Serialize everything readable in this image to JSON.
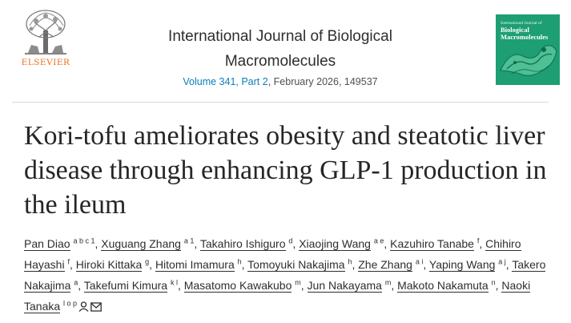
{
  "header": {
    "publisher": "ELSEVIER",
    "journal_title": "International Journal of Biological Macromolecules",
    "volume": "Volume 341, Part 2",
    "issue_rest": ", February 2026, 149537",
    "cover": {
      "top_text": "International Journal of",
      "title": "Biological Macromolecules",
      "color": "#1e9e73"
    }
  },
  "article": {
    "title": "Kori-tofu ameliorates obesity and steatotic liver disease through enhancing GLP-1 production in the ileum"
  },
  "authors": [
    {
      "name": "Pan Diao",
      "sup": "a b c 1"
    },
    {
      "name": "Xuguang Zhang",
      "sup": "a 1"
    },
    {
      "name": "Takahiro Ishiguro",
      "sup": "d"
    },
    {
      "name": "Xiaojing Wang",
      "sup": "a e"
    },
    {
      "name": "Kazuhiro Tanabe",
      "sup": "f"
    },
    {
      "name": "Chihiro Hayashi",
      "sup": "f"
    },
    {
      "name": "Hiroki Kittaka",
      "sup": "g"
    },
    {
      "name": "Hitomi Imamura",
      "sup": "h"
    },
    {
      "name": "Tomoyuki Nakajima",
      "sup": "h"
    },
    {
      "name": "Zhe Zhang",
      "sup": "a i"
    },
    {
      "name": "Yaping Wang",
      "sup": "a j"
    },
    {
      "name": "Takero Nakajima",
      "sup": "a"
    },
    {
      "name": "Takefumi Kimura",
      "sup": "k l"
    },
    {
      "name": "Masatomo Kawakubo",
      "sup": "m"
    },
    {
      "name": "Jun Nakayama",
      "sup": "m"
    },
    {
      "name": "Makoto Nakamuta",
      "sup": "n"
    },
    {
      "name": "Naoki Tanaka",
      "sup": "l o p",
      "icons": [
        "person-icon",
        "envelope-icon"
      ]
    }
  ],
  "colors": {
    "link": "#0c7dbb",
    "elsevier_orange": "#e9711c"
  }
}
